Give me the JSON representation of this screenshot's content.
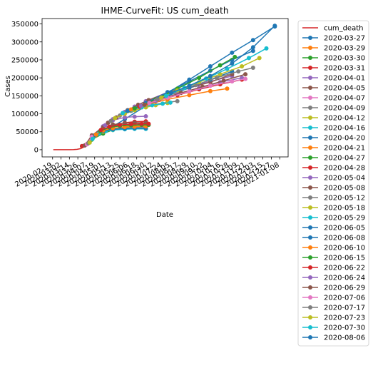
{
  "chart_data": {
    "type": "line",
    "title": "IHME-CurveFit: US cum_death",
    "xlabel": "Date",
    "ylabel": "Cases",
    "ylim": [
      -20000,
      365000
    ],
    "xlim": [
      "2020-02-04",
      "2021-01-20"
    ],
    "yticks": [
      0,
      50000,
      100000,
      150000,
      200000,
      250000,
      300000,
      350000
    ],
    "ytick_labels": [
      "0",
      "50000",
      "100000",
      "150000",
      "200000",
      "250000",
      "300000",
      "350000"
    ],
    "xtick_labels": [
      "2020-02-19",
      "2020-03-02",
      "2020-03-14",
      "2020-03-26",
      "2020-04-07",
      "2020-04-19",
      "2020-05-01",
      "2020-05-13",
      "2020-05-25",
      "2020-06-06",
      "2020-06-18",
      "2020-06-30",
      "2020-07-12",
      "2020-07-24",
      "2020-08-05",
      "2020-08-17",
      "2020-08-29",
      "2020-09-10",
      "2020-09-22",
      "2020-10-04",
      "2020-10-16",
      "2020-10-28",
      "2020-11-09",
      "2020-11-21",
      "2020-12-03",
      "2020-12-15",
      "2020-12-27",
      "2021-01-08"
    ],
    "grid": false,
    "legend_position": "outside right",
    "actual": {
      "name": "cum_death",
      "color": "#d62728",
      "x": [
        "2020-02-20",
        "2020-03-01",
        "2020-03-10",
        "2020-03-15",
        "2020-03-20",
        "2020-03-25",
        "2020-03-30",
        "2020-04-05",
        "2020-04-10"
      ],
      "y": [
        0,
        0,
        0,
        100,
        300,
        1000,
        3000,
        9000,
        20000
      ]
    },
    "series": [
      {
        "name": "2020-03-27",
        "color": "#1f77b4",
        "x": [
          "2020-04-01",
          "2020-05-01",
          "2020-06-01",
          "2020-07-01",
          "2020-08-01",
          "2020-09-01",
          "2020-10-01",
          "2020-11-01",
          "2020-12-01",
          "2021-01-01"
        ],
        "y": [
          10000,
          48000,
          85000,
          122000,
          158000,
          195000,
          232000,
          270000,
          305000,
          343000
        ]
      },
      {
        "name": "2020-03-29",
        "color": "#ff7f0e",
        "x": [
          "2020-04-01",
          "2020-04-15",
          "2020-05-01",
          "2020-05-15",
          "2020-06-01",
          "2020-06-15",
          "2020-07-01"
        ],
        "y": [
          10000,
          30000,
          48000,
          58000,
          64000,
          67000,
          68000
        ]
      },
      {
        "name": "2020-03-30",
        "color": "#2ca02c",
        "x": [
          "2020-04-01",
          "2020-04-15",
          "2020-05-01",
          "2020-05-15",
          "2020-06-01",
          "2020-06-15",
          "2020-07-01"
        ],
        "y": [
          10000,
          28000,
          45000,
          55000,
          60000,
          62000,
          63000
        ]
      },
      {
        "name": "2020-03-31",
        "color": "#d62728",
        "x": [
          "2020-04-01",
          "2020-04-15",
          "2020-05-01",
          "2020-05-15",
          "2020-06-01",
          "2020-06-15",
          "2020-07-01"
        ],
        "y": [
          10000,
          32000,
          55000,
          68000,
          75000,
          78000,
          79000
        ]
      },
      {
        "name": "2020-04-01",
        "color": "#9467bd",
        "x": [
          "2020-04-05",
          "2020-04-15",
          "2020-05-01",
          "2020-05-15",
          "2020-06-01",
          "2020-06-15",
          "2020-07-01"
        ],
        "y": [
          12000,
          38000,
          65000,
          82000,
          90000,
          92000,
          93000
        ]
      },
      {
        "name": "2020-04-05",
        "color": "#8c564b",
        "x": [
          "2020-04-05",
          "2020-04-15",
          "2020-05-01",
          "2020-05-15",
          "2020-06-01",
          "2020-06-15",
          "2020-07-01"
        ],
        "y": [
          12000,
          40000,
          62000,
          70000,
          74000,
          75000,
          75000
        ]
      },
      {
        "name": "2020-04-07",
        "color": "#e377c2",
        "x": [
          "2020-04-08",
          "2020-04-15",
          "2020-05-01",
          "2020-05-15",
          "2020-06-01",
          "2020-06-15",
          "2020-07-01"
        ],
        "y": [
          15000,
          36000,
          52000,
          58000,
          62000,
          63000,
          64000
        ]
      },
      {
        "name": "2020-04-09",
        "color": "#7f7f7f",
        "x": [
          "2020-04-10",
          "2020-04-20",
          "2020-05-01",
          "2020-05-15",
          "2020-06-01",
          "2020-06-15",
          "2020-07-01"
        ],
        "y": [
          18000,
          40000,
          52000,
          57000,
          60000,
          61000,
          61000
        ]
      },
      {
        "name": "2020-04-12",
        "color": "#bcbd22",
        "x": [
          "2020-04-12",
          "2020-04-20",
          "2020-05-01",
          "2020-05-15",
          "2020-06-01",
          "2020-06-15",
          "2020-07-01"
        ],
        "y": [
          20000,
          38000,
          50000,
          55000,
          58000,
          59000,
          59000
        ]
      },
      {
        "name": "2020-04-16",
        "color": "#17becf",
        "x": [
          "2020-04-16",
          "2020-04-25",
          "2020-05-05",
          "2020-05-15",
          "2020-06-01",
          "2020-06-15",
          "2020-07-01"
        ],
        "y": [
          30000,
          45000,
          52000,
          55000,
          57000,
          58000,
          58000
        ]
      },
      {
        "name": "2020-04-20",
        "color": "#1f77b4",
        "x": [
          "2020-04-20",
          "2020-05-01",
          "2020-05-15",
          "2020-06-01",
          "2020-06-15",
          "2020-07-01"
        ],
        "y": [
          40000,
          52000,
          57000,
          59000,
          60000,
          60000
        ]
      },
      {
        "name": "2020-04-21",
        "color": "#ff7f0e",
        "x": [
          "2020-04-21",
          "2020-05-01",
          "2020-05-15",
          "2020-06-01",
          "2020-06-15",
          "2020-07-01"
        ],
        "y": [
          42000,
          54000,
          60000,
          63000,
          64000,
          65000
        ]
      },
      {
        "name": "2020-04-27",
        "color": "#2ca02c",
        "x": [
          "2020-04-27",
          "2020-05-10",
          "2020-05-25",
          "2020-06-10",
          "2020-06-25",
          "2020-07-05"
        ],
        "y": [
          52000,
          62000,
          66000,
          68000,
          69000,
          69000
        ]
      },
      {
        "name": "2020-04-28",
        "color": "#d62728",
        "x": [
          "2020-04-28",
          "2020-05-10",
          "2020-05-25",
          "2020-06-10",
          "2020-06-25",
          "2020-07-05"
        ],
        "y": [
          55000,
          64000,
          69000,
          71000,
          72000,
          72000
        ]
      },
      {
        "name": "2020-05-04",
        "color": "#9467bd",
        "x": [
          "2020-05-04",
          "2020-05-15",
          "2020-06-01",
          "2020-06-15",
          "2020-07-01",
          "2020-08-01",
          "2020-09-01",
          "2020-10-01",
          "2020-11-01"
        ],
        "y": [
          68000,
          85000,
          105000,
          120000,
          135000,
          160000,
          175000,
          190000,
          205000
        ]
      },
      {
        "name": "2020-05-08",
        "color": "#8c564b",
        "x": [
          "2020-05-08",
          "2020-05-20",
          "2020-06-05",
          "2020-06-20",
          "2020-07-05",
          "2020-08-01",
          "2020-09-01",
          "2020-10-01",
          "2020-11-01"
        ],
        "y": [
          75000,
          90000,
          110000,
          125000,
          138000,
          158000,
          172000,
          188000,
          210000
        ]
      },
      {
        "name": "2020-05-12",
        "color": "#7f7f7f",
        "x": [
          "2020-05-12",
          "2020-05-25",
          "2020-06-10",
          "2020-06-25",
          "2020-07-10",
          "2020-08-01",
          "2020-08-15"
        ],
        "y": [
          80000,
          95000,
          108000,
          118000,
          125000,
          132000,
          135000
        ]
      },
      {
        "name": "2020-05-18",
        "color": "#bcbd22",
        "x": [
          "2020-05-18",
          "2020-06-01",
          "2020-06-15",
          "2020-07-01",
          "2020-07-15",
          "2020-08-01"
        ],
        "y": [
          88000,
          100000,
          110000,
          118000,
          124000,
          130000
        ]
      },
      {
        "name": "2020-05-29",
        "color": "#17becf",
        "x": [
          "2020-05-29",
          "2020-06-10",
          "2020-06-25",
          "2020-07-10",
          "2020-07-25",
          "2020-08-05"
        ],
        "y": [
          102000,
          110000,
          118000,
          124000,
          128000,
          131000
        ]
      },
      {
        "name": "2020-06-05",
        "color": "#1f77b4",
        "x": [
          "2020-06-05",
          "2020-07-01",
          "2020-08-01",
          "2020-09-01",
          "2020-10-01",
          "2020-11-01",
          "2020-12-01"
        ],
        "y": [
          108000,
          130000,
          160000,
          190000,
          220000,
          250000,
          275000
        ]
      },
      {
        "name": "2020-06-08",
        "color": "#1f77b4",
        "x": [
          "2020-06-08",
          "2020-07-01",
          "2020-08-01",
          "2020-09-01",
          "2020-10-01",
          "2020-11-01"
        ],
        "y": [
          110000,
          128000,
          150000,
          172000,
          195000,
          218000
        ]
      },
      {
        "name": "2020-06-10",
        "color": "#ff7f0e",
        "x": [
          "2020-06-10",
          "2020-07-01",
          "2020-08-01",
          "2020-09-01",
          "2020-10-01",
          "2020-10-25"
        ],
        "y": [
          112000,
          125000,
          140000,
          152000,
          163000,
          170000
        ]
      },
      {
        "name": "2020-06-15",
        "color": "#2ca02c",
        "x": [
          "2020-06-15",
          "2020-07-15",
          "2020-08-15",
          "2020-09-15",
          "2020-10-15",
          "2020-11-05"
        ],
        "y": [
          115000,
          140000,
          170000,
          200000,
          235000,
          258000
        ]
      },
      {
        "name": "2020-06-22",
        "color": "#d62728",
        "x": [
          "2020-06-22",
          "2020-07-15",
          "2020-08-15",
          "2020-09-15",
          "2020-10-15",
          "2020-11-15"
        ],
        "y": [
          120000,
          135000,
          152000,
          168000,
          182000,
          195000
        ]
      },
      {
        "name": "2020-06-24",
        "color": "#9467bd",
        "x": [
          "2020-06-24",
          "2020-07-15",
          "2020-08-15",
          "2020-09-15",
          "2020-10-15",
          "2020-11-15"
        ],
        "y": [
          122000,
          136000,
          155000,
          172000,
          188000,
          200000
        ]
      },
      {
        "name": "2020-06-29",
        "color": "#8c564b",
        "x": [
          "2020-06-29",
          "2020-07-20",
          "2020-08-20",
          "2020-09-20",
          "2020-10-20",
          "2020-11-20"
        ],
        "y": [
          125000,
          140000,
          158000,
          175000,
          192000,
          210000
        ]
      },
      {
        "name": "2020-07-06",
        "color": "#e377c2",
        "x": [
          "2020-07-06",
          "2020-08-01",
          "2020-09-01",
          "2020-10-01",
          "2020-11-01",
          "2020-11-20"
        ],
        "y": [
          130000,
          145000,
          162000,
          178000,
          190000,
          197000
        ]
      },
      {
        "name": "2020-07-17",
        "color": "#7f7f7f",
        "x": [
          "2020-07-17",
          "2020-08-10",
          "2020-09-10",
          "2020-10-10",
          "2020-11-10",
          "2020-12-01"
        ],
        "y": [
          140000,
          160000,
          180000,
          200000,
          218000,
          228000
        ]
      },
      {
        "name": "2020-07-23",
        "color": "#bcbd22",
        "x": [
          "2020-07-23",
          "2020-08-15",
          "2020-09-15",
          "2020-10-15",
          "2020-11-15",
          "2020-12-10"
        ],
        "y": [
          145000,
          165000,
          188000,
          210000,
          232000,
          255000
        ]
      },
      {
        "name": "2020-07-30",
        "color": "#17becf",
        "x": [
          "2020-07-30",
          "2020-08-25",
          "2020-09-25",
          "2020-10-25",
          "2020-11-25",
          "2020-12-20"
        ],
        "y": [
          150000,
          172000,
          198000,
          225000,
          255000,
          282000
        ]
      },
      {
        "name": "2020-08-06",
        "color": "#1f77b4",
        "x": [
          "2020-08-06",
          "2020-09-01",
          "2020-10-01",
          "2020-11-01",
          "2020-12-01",
          "2021-01-01"
        ],
        "y": [
          158000,
          178000,
          205000,
          240000,
          285000,
          345000
        ]
      }
    ]
  }
}
